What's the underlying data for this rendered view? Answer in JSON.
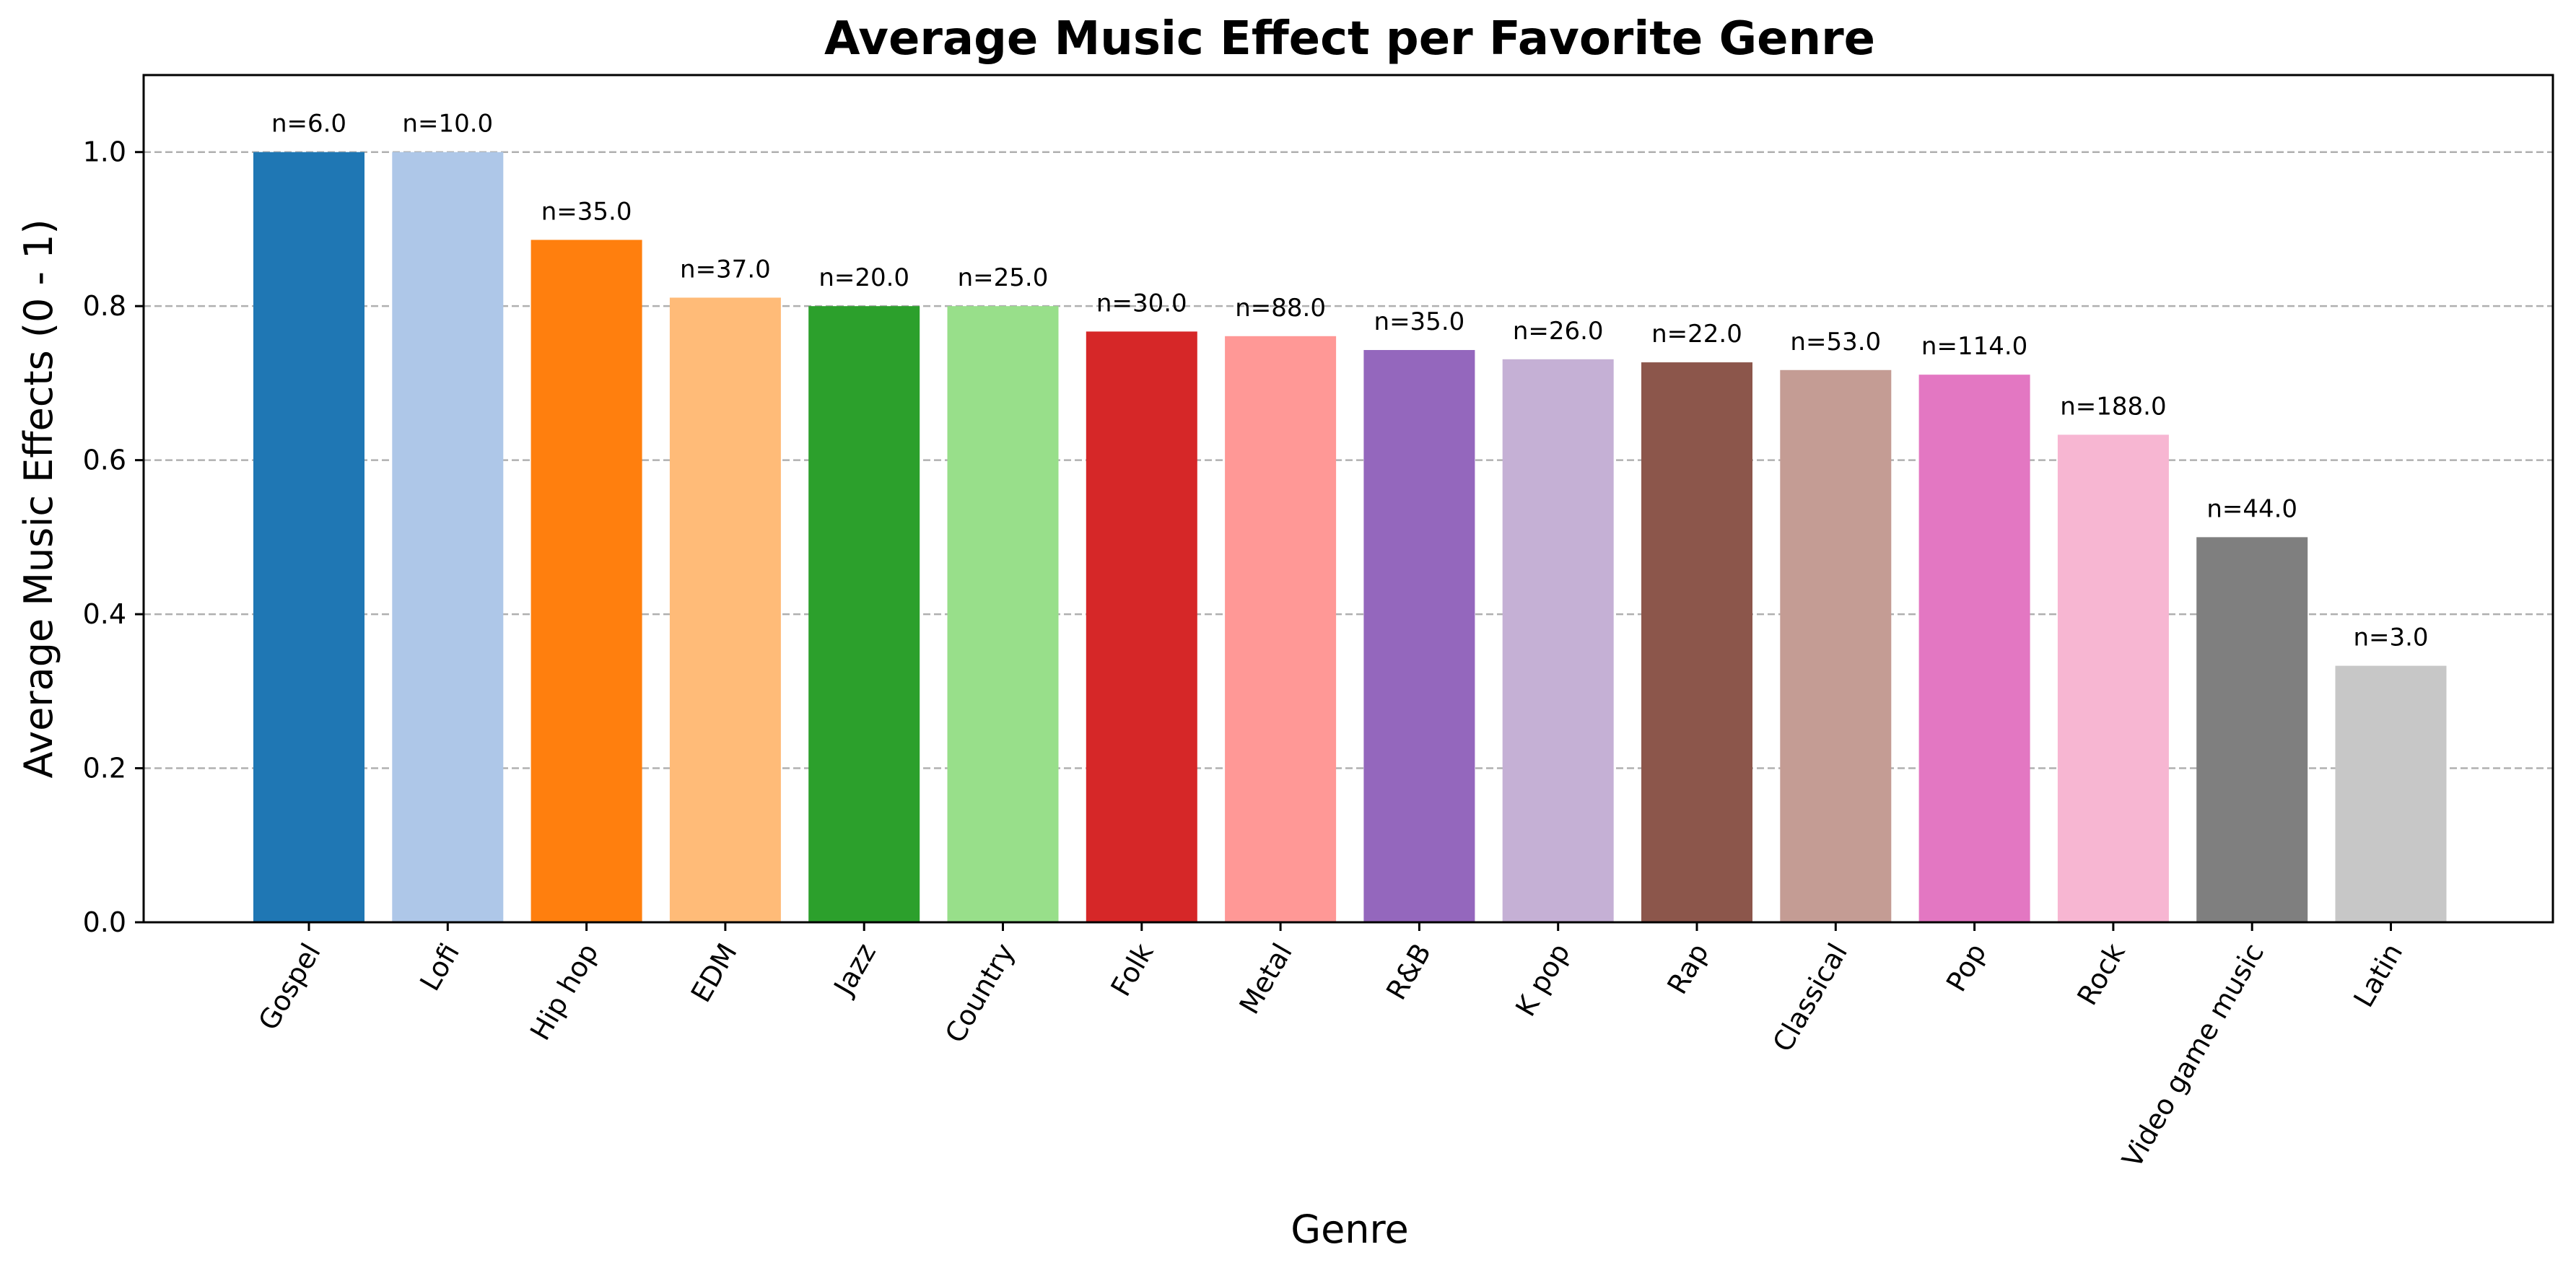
{
  "chart_data": {
    "type": "bar",
    "title": "Average Music Effect per Favorite Genre",
    "xlabel": "Genre",
    "ylabel": "Average Music Effects (0 - 1)",
    "ylim": [
      0,
      1.1
    ],
    "yticks": [
      0.0,
      0.2,
      0.4,
      0.6,
      0.8,
      1.0
    ],
    "ytick_labels": [
      "0.0",
      "0.2",
      "0.4",
      "0.6",
      "0.8",
      "1.0"
    ],
    "grid": "y-dashed",
    "categories": [
      "Gospel",
      "Lofi",
      "Hip hop",
      "EDM",
      "Jazz",
      "Country",
      "Folk",
      "Metal",
      "R&B",
      "K pop",
      "Rap",
      "Classical",
      "Pop",
      "Rock",
      "Video game music",
      "Latin"
    ],
    "values": [
      1.0,
      1.0,
      0.886,
      0.811,
      0.8,
      0.8,
      0.767,
      0.761,
      0.743,
      0.731,
      0.727,
      0.717,
      0.711,
      0.633,
      0.5,
      0.333
    ],
    "bar_labels": [
      "n=6.0",
      "n=10.0",
      "n=35.0",
      "n=37.0",
      "n=20.0",
      "n=25.0",
      "n=30.0",
      "n=88.0",
      "n=35.0",
      "n=26.0",
      "n=22.0",
      "n=53.0",
      "n=114.0",
      "n=188.0",
      "n=44.0",
      "n=3.0"
    ],
    "colors": [
      "#1f77b4",
      "#aec7e8",
      "#ff7f0e",
      "#ffbb78",
      "#2ca02c",
      "#98df8a",
      "#d62728",
      "#ff9896",
      "#9467bd",
      "#c5b0d5",
      "#8c564b",
      "#c49c94",
      "#e377c2",
      "#f7b6d2",
      "#7f7f7f",
      "#c7c7c7"
    ]
  }
}
